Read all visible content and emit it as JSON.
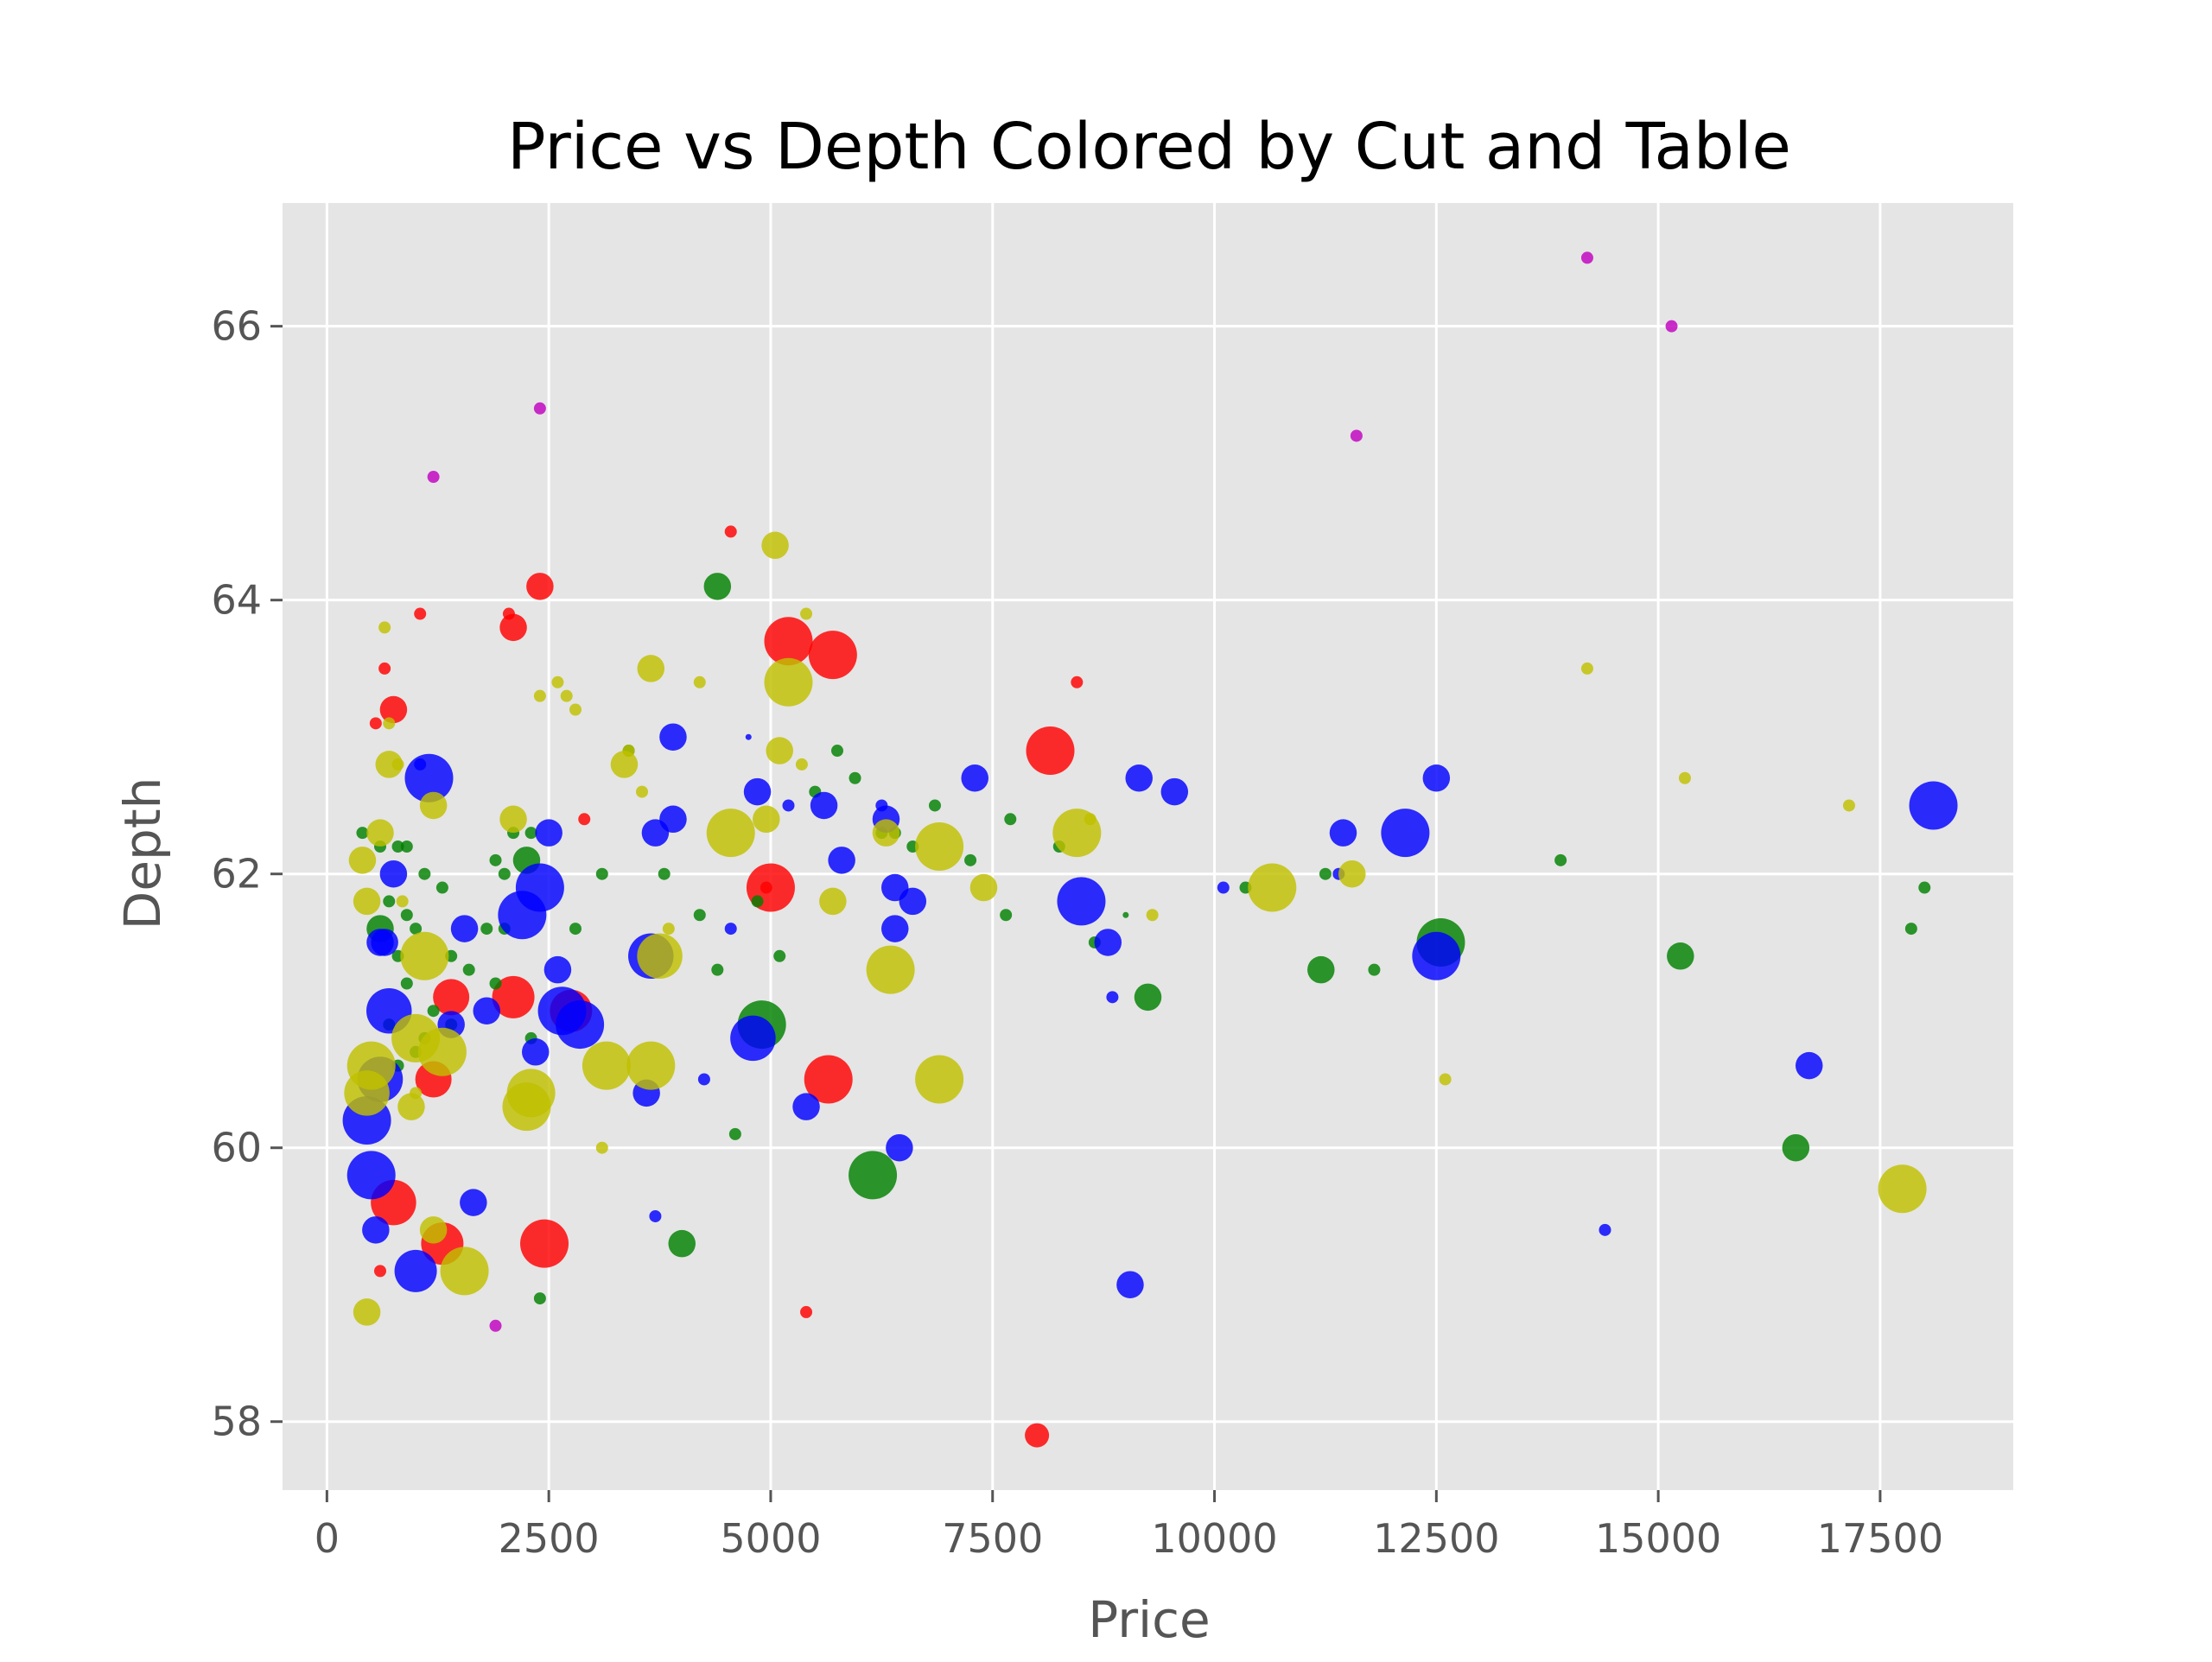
{
  "chart_data": {
    "type": "scatter",
    "title": "Price vs Depth Colored by Cut and Table",
    "xlabel": "Price",
    "ylabel": "Depth",
    "xlim": [
      -500,
      19000
    ],
    "ylim": [
      57.5,
      66.9
    ],
    "xticks": [
      0,
      2500,
      5000,
      7500,
      10000,
      12500,
      15000,
      17500
    ],
    "xtick_labels": [
      "0",
      "2500",
      "5000",
      "7500",
      "10000",
      "12500",
      "15000",
      "17500"
    ],
    "yticks": [
      58,
      60,
      62,
      64,
      66
    ],
    "ytick_labels": [
      "58",
      "60",
      "62",
      "64",
      "66"
    ],
    "grid": true,
    "legend": "none",
    "colors": {
      "red": "#ff0000",
      "green": "#008000",
      "blue": "#0000ff",
      "yellow": "#bfbf00",
      "magenta": "#bf00bf",
      "plot_bg": "#e5e5e5",
      "grid": "#ffffff",
      "axis_text": "#555555"
    },
    "series": [
      {
        "color": "#ff0000",
        "points": [
          [
            8000,
            57.9,
            8
          ],
          [
            2400,
            64.1,
            9
          ],
          [
            4550,
            64.5,
            4
          ],
          [
            2100,
            63.8,
            9
          ],
          [
            2050,
            63.9,
            4
          ],
          [
            5200,
            63.7,
            16
          ],
          [
            5700,
            63.6,
            16
          ],
          [
            1050,
            63.9,
            4
          ],
          [
            650,
            63.5,
            4
          ],
          [
            750,
            63.2,
            9
          ],
          [
            550,
            63.1,
            4
          ],
          [
            8150,
            62.9,
            16
          ],
          [
            8450,
            63.4,
            4
          ],
          [
            2900,
            62.4,
            4
          ],
          [
            4950,
            61.9,
            4
          ],
          [
            5000,
            61.9,
            16
          ],
          [
            1400,
            61.1,
            12
          ],
          [
            2100,
            61.1,
            14
          ],
          [
            2750,
            61.0,
            14
          ],
          [
            1200,
            60.5,
            12
          ],
          [
            5650,
            60.5,
            16
          ],
          [
            750,
            59.6,
            15
          ],
          [
            1300,
            59.3,
            14
          ],
          [
            2450,
            59.3,
            16
          ],
          [
            600,
            59.1,
            4
          ],
          [
            5400,
            58.8,
            4
          ]
        ]
      },
      {
        "color": "#008000",
        "points": [
          [
            4400,
            64.1,
            9
          ],
          [
            400,
            62.3,
            4
          ],
          [
            600,
            62.2,
            4
          ],
          [
            800,
            62.2,
            4
          ],
          [
            900,
            62.2,
            4
          ],
          [
            1100,
            62.0,
            4
          ],
          [
            1300,
            61.9,
            4
          ],
          [
            1900,
            62.1,
            4
          ],
          [
            2000,
            62.0,
            4
          ],
          [
            2250,
            62.1,
            9
          ],
          [
            2100,
            62.3,
            4
          ],
          [
            2300,
            62.3,
            4
          ],
          [
            600,
            61.6,
            9
          ],
          [
            700,
            61.8,
            4
          ],
          [
            900,
            61.7,
            4
          ],
          [
            1000,
            61.6,
            4
          ],
          [
            800,
            61.4,
            4
          ],
          [
            1400,
            61.4,
            4
          ],
          [
            1600,
            61.3,
            4
          ],
          [
            1800,
            61.6,
            4
          ],
          [
            2000,
            61.6,
            4
          ],
          [
            2800,
            61.6,
            4
          ],
          [
            3100,
            62.0,
            4
          ],
          [
            3400,
            62.9,
            4
          ],
          [
            3800,
            62.0,
            4
          ],
          [
            4200,
            61.7,
            4
          ],
          [
            4400,
            61.3,
            4
          ],
          [
            4850,
            61.8,
            4
          ],
          [
            5100,
            61.4,
            4
          ],
          [
            5500,
            62.6,
            4
          ],
          [
            5750,
            62.9,
            4
          ],
          [
            5950,
            62.7,
            4
          ],
          [
            6250,
            62.3,
            4
          ],
          [
            6400,
            62.3,
            4
          ],
          [
            6600,
            62.2,
            4
          ],
          [
            6850,
            62.5,
            4
          ],
          [
            7250,
            62.1,
            4
          ],
          [
            7650,
            61.7,
            4
          ],
          [
            7700,
            62.4,
            4
          ],
          [
            8250,
            62.2,
            4
          ],
          [
            8650,
            61.5,
            4
          ],
          [
            9000,
            61.7,
            2
          ],
          [
            9250,
            61.1,
            9
          ],
          [
            10350,
            61.9,
            4
          ],
          [
            11250,
            62.0,
            4
          ],
          [
            11200,
            61.3,
            9
          ],
          [
            11800,
            61.3,
            4
          ],
          [
            12550,
            61.5,
            16
          ],
          [
            13900,
            62.1,
            4
          ],
          [
            15250,
            61.4,
            9
          ],
          [
            16550,
            60.0,
            9
          ],
          [
            17850,
            61.6,
            4
          ],
          [
            18000,
            61.9,
            4
          ],
          [
            4000,
            59.3,
            9
          ],
          [
            4600,
            60.1,
            4
          ],
          [
            4900,
            60.9,
            16
          ],
          [
            6150,
            59.8,
            16
          ],
          [
            2400,
            58.9,
            4
          ],
          [
            2300,
            60.8,
            4
          ],
          [
            1900,
            61.2,
            4
          ],
          [
            1100,
            60.8,
            4
          ],
          [
            800,
            60.6,
            4
          ],
          [
            900,
            61.2,
            4
          ],
          [
            700,
            60.9,
            4
          ],
          [
            1000,
            60.7,
            4
          ],
          [
            1200,
            61.0,
            4
          ],
          [
            1400,
            60.9,
            4
          ]
        ]
      },
      {
        "color": "#0000ff",
        "points": [
          [
            1150,
            62.7,
            16
          ],
          [
            1050,
            62.8,
            4
          ],
          [
            750,
            62.0,
            9
          ],
          [
            3900,
            63.0,
            9
          ],
          [
            4750,
            63.0,
            2
          ],
          [
            4850,
            62.6,
            9
          ],
          [
            5200,
            62.5,
            4
          ],
          [
            5600,
            62.5,
            9
          ],
          [
            5800,
            62.1,
            9
          ],
          [
            6250,
            62.5,
            4
          ],
          [
            6300,
            62.4,
            9
          ],
          [
            6400,
            61.9,
            9
          ],
          [
            6600,
            61.8,
            9
          ],
          [
            6400,
            61.6,
            9
          ],
          [
            7300,
            62.7,
            9
          ],
          [
            9150,
            62.7,
            9
          ],
          [
            9550,
            62.6,
            9
          ],
          [
            8500,
            61.8,
            16
          ],
          [
            8800,
            61.5,
            9
          ],
          [
            8850,
            61.1,
            4
          ],
          [
            10100,
            61.9,
            4
          ],
          [
            11400,
            62.0,
            4
          ],
          [
            11450,
            62.3,
            9
          ],
          [
            12150,
            62.3,
            16
          ],
          [
            12500,
            62.7,
            9
          ],
          [
            12500,
            61.4,
            16
          ],
          [
            18100,
            62.5,
            16
          ],
          [
            14400,
            59.4,
            4
          ],
          [
            16700,
            60.6,
            9
          ],
          [
            9050,
            59.0,
            9
          ],
          [
            6450,
            60.0,
            9
          ],
          [
            5400,
            60.3,
            9
          ],
          [
            4800,
            60.8,
            15
          ],
          [
            4550,
            61.6,
            4
          ],
          [
            3600,
            60.4,
            9
          ],
          [
            3650,
            61.4,
            15
          ],
          [
            3700,
            62.3,
            9
          ],
          [
            3900,
            62.4,
            9
          ],
          [
            2500,
            62.3,
            9
          ],
          [
            2400,
            61.9,
            16
          ],
          [
            2200,
            61.7,
            16
          ],
          [
            2600,
            61.3,
            9
          ],
          [
            2650,
            61.0,
            16
          ],
          [
            2850,
            60.9,
            16
          ],
          [
            2350,
            60.7,
            9
          ],
          [
            1800,
            61.0,
            9
          ],
          [
            1400,
            60.9,
            9
          ],
          [
            1550,
            61.6,
            9
          ],
          [
            650,
            61.5,
            9
          ],
          [
            600,
            61.5,
            9
          ],
          [
            700,
            61.0,
            15
          ],
          [
            600,
            60.5,
            15
          ],
          [
            450,
            60.2,
            16
          ],
          [
            500,
            59.8,
            16
          ],
          [
            550,
            59.4,
            9
          ],
          [
            1000,
            59.1,
            14
          ],
          [
            1650,
            59.6,
            9
          ],
          [
            3700,
            59.5,
            4
          ],
          [
            4250,
            60.5,
            4
          ]
        ]
      },
      {
        "color": "#bfbf00",
        "points": [
          [
            5050,
            64.4,
            9
          ],
          [
            5400,
            63.9,
            4
          ],
          [
            3650,
            63.5,
            9
          ],
          [
            4200,
            63.4,
            4
          ],
          [
            5200,
            63.4,
            16
          ],
          [
            2600,
            63.4,
            4
          ],
          [
            2700,
            63.3,
            4
          ],
          [
            2400,
            63.3,
            4
          ],
          [
            2800,
            63.2,
            4
          ],
          [
            650,
            63.8,
            4
          ],
          [
            3350,
            62.8,
            9
          ],
          [
            3400,
            62.9,
            4
          ],
          [
            3550,
            62.6,
            4
          ],
          [
            5100,
            62.9,
            9
          ],
          [
            5350,
            62.8,
            4
          ],
          [
            4550,
            62.3,
            16
          ],
          [
            4950,
            62.4,
            9
          ],
          [
            6300,
            62.3,
            9
          ],
          [
            6900,
            62.2,
            16
          ],
          [
            7400,
            61.9,
            9
          ],
          [
            8450,
            62.3,
            16
          ],
          [
            8600,
            62.4,
            4
          ],
          [
            9300,
            61.7,
            4
          ],
          [
            10650,
            61.9,
            16
          ],
          [
            11550,
            62.0,
            9
          ],
          [
            14200,
            63.5,
            4
          ],
          [
            15300,
            62.7,
            4
          ],
          [
            17150,
            62.5,
            4
          ],
          [
            12600,
            60.5,
            4
          ],
          [
            17750,
            59.7,
            16
          ],
          [
            6900,
            60.5,
            16
          ],
          [
            6350,
            61.3,
            16
          ],
          [
            5700,
            61.8,
            9
          ],
          [
            3850,
            61.6,
            4
          ],
          [
            3750,
            61.4,
            15
          ],
          [
            3650,
            60.6,
            16
          ],
          [
            3150,
            60.6,
            16
          ],
          [
            3100,
            60.0,
            4
          ],
          [
            2300,
            60.4,
            16
          ],
          [
            2250,
            60.3,
            16
          ],
          [
            1550,
            59.1,
            16
          ],
          [
            1200,
            59.4,
            9
          ],
          [
            450,
            58.8,
            9
          ],
          [
            950,
            60.3,
            9
          ],
          [
            1000,
            60.4,
            4
          ],
          [
            1100,
            61.4,
            16
          ],
          [
            1300,
            60.7,
            16
          ],
          [
            1000,
            60.8,
            16
          ],
          [
            500,
            60.6,
            16
          ],
          [
            450,
            60.4,
            15
          ],
          [
            700,
            62.8,
            9
          ],
          [
            800,
            62.8,
            4
          ],
          [
            600,
            62.3,
            9
          ],
          [
            400,
            62.1,
            9
          ],
          [
            450,
            61.8,
            9
          ],
          [
            1200,
            62.5,
            9
          ],
          [
            2100,
            62.4,
            9
          ],
          [
            700,
            63.1,
            4
          ],
          [
            850,
            61.8,
            4
          ]
        ]
      },
      {
        "color": "#bf00bf",
        "points": [
          [
            14200,
            66.5,
            4
          ],
          [
            15150,
            66.0,
            4
          ],
          [
            11600,
            65.2,
            4
          ],
          [
            2400,
            65.4,
            4
          ],
          [
            1200,
            64.9,
            4
          ],
          [
            1900,
            58.7,
            4
          ]
        ]
      }
    ]
  }
}
